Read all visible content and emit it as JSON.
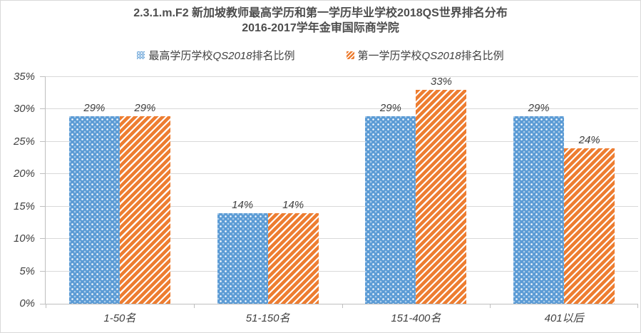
{
  "title": {
    "line1": "2.3.1.m.F2 新加坡教师最高学历和第一学历毕业学校2018QS世界排名分布",
    "line2": "2016-2017学年金审国际商学院"
  },
  "legend": {
    "items": [
      {
        "prefix": "最高学历学校",
        "qs": "QS2018",
        "suffix": "排名比例",
        "pattern": "dots",
        "color": "#5B9BD5"
      },
      {
        "prefix": "第一学历学校",
        "qs": "QS2018",
        "suffix": "排名比例",
        "pattern": "stripes",
        "color": "#ED7D31"
      }
    ]
  },
  "chart_data": {
    "type": "bar",
    "title": "2.3.1.m.F2 新加坡教师最高学历和第一学历毕业学校2018QS世界排名分布",
    "subtitle": "2016-2017学年金审国际商学院",
    "categories": [
      "1-50名",
      "51-150名",
      "151-400名",
      "401以后"
    ],
    "series": [
      {
        "name": "最高学历学校QS2018排名比例",
        "key": "highest-degree",
        "color": "#5B9BD5",
        "pattern": "dots",
        "values": [
          29,
          14,
          29,
          29
        ],
        "labels": [
          "29%",
          "14%",
          "29%",
          "29%"
        ]
      },
      {
        "name": "第一学历学校QS2018排名比例",
        "key": "first-degree",
        "color": "#ED7D31",
        "pattern": "stripes",
        "values": [
          29,
          14,
          33,
          24
        ],
        "labels": [
          "29%",
          "14%",
          "33%",
          "24%"
        ]
      }
    ],
    "y_axis": {
      "min": 0,
      "max": 35,
      "step": 5,
      "ticks": [
        {
          "v": 0,
          "label": "0%"
        },
        {
          "v": 5,
          "label": "5%"
        },
        {
          "v": 10,
          "label": "10%"
        },
        {
          "v": 15,
          "label": "15%"
        },
        {
          "v": 20,
          "label": "20%"
        },
        {
          "v": 25,
          "label": "25%"
        },
        {
          "v": 30,
          "label": "30%"
        },
        {
          "v": 35,
          "label": "35%"
        }
      ],
      "grid": true
    },
    "legend_position": "top",
    "colors": {
      "series1": "#5B9BD5",
      "series2": "#ED7D31",
      "gridline": "#D9D9D9",
      "axis": "#BFBFBF",
      "text": "#404040"
    }
  }
}
